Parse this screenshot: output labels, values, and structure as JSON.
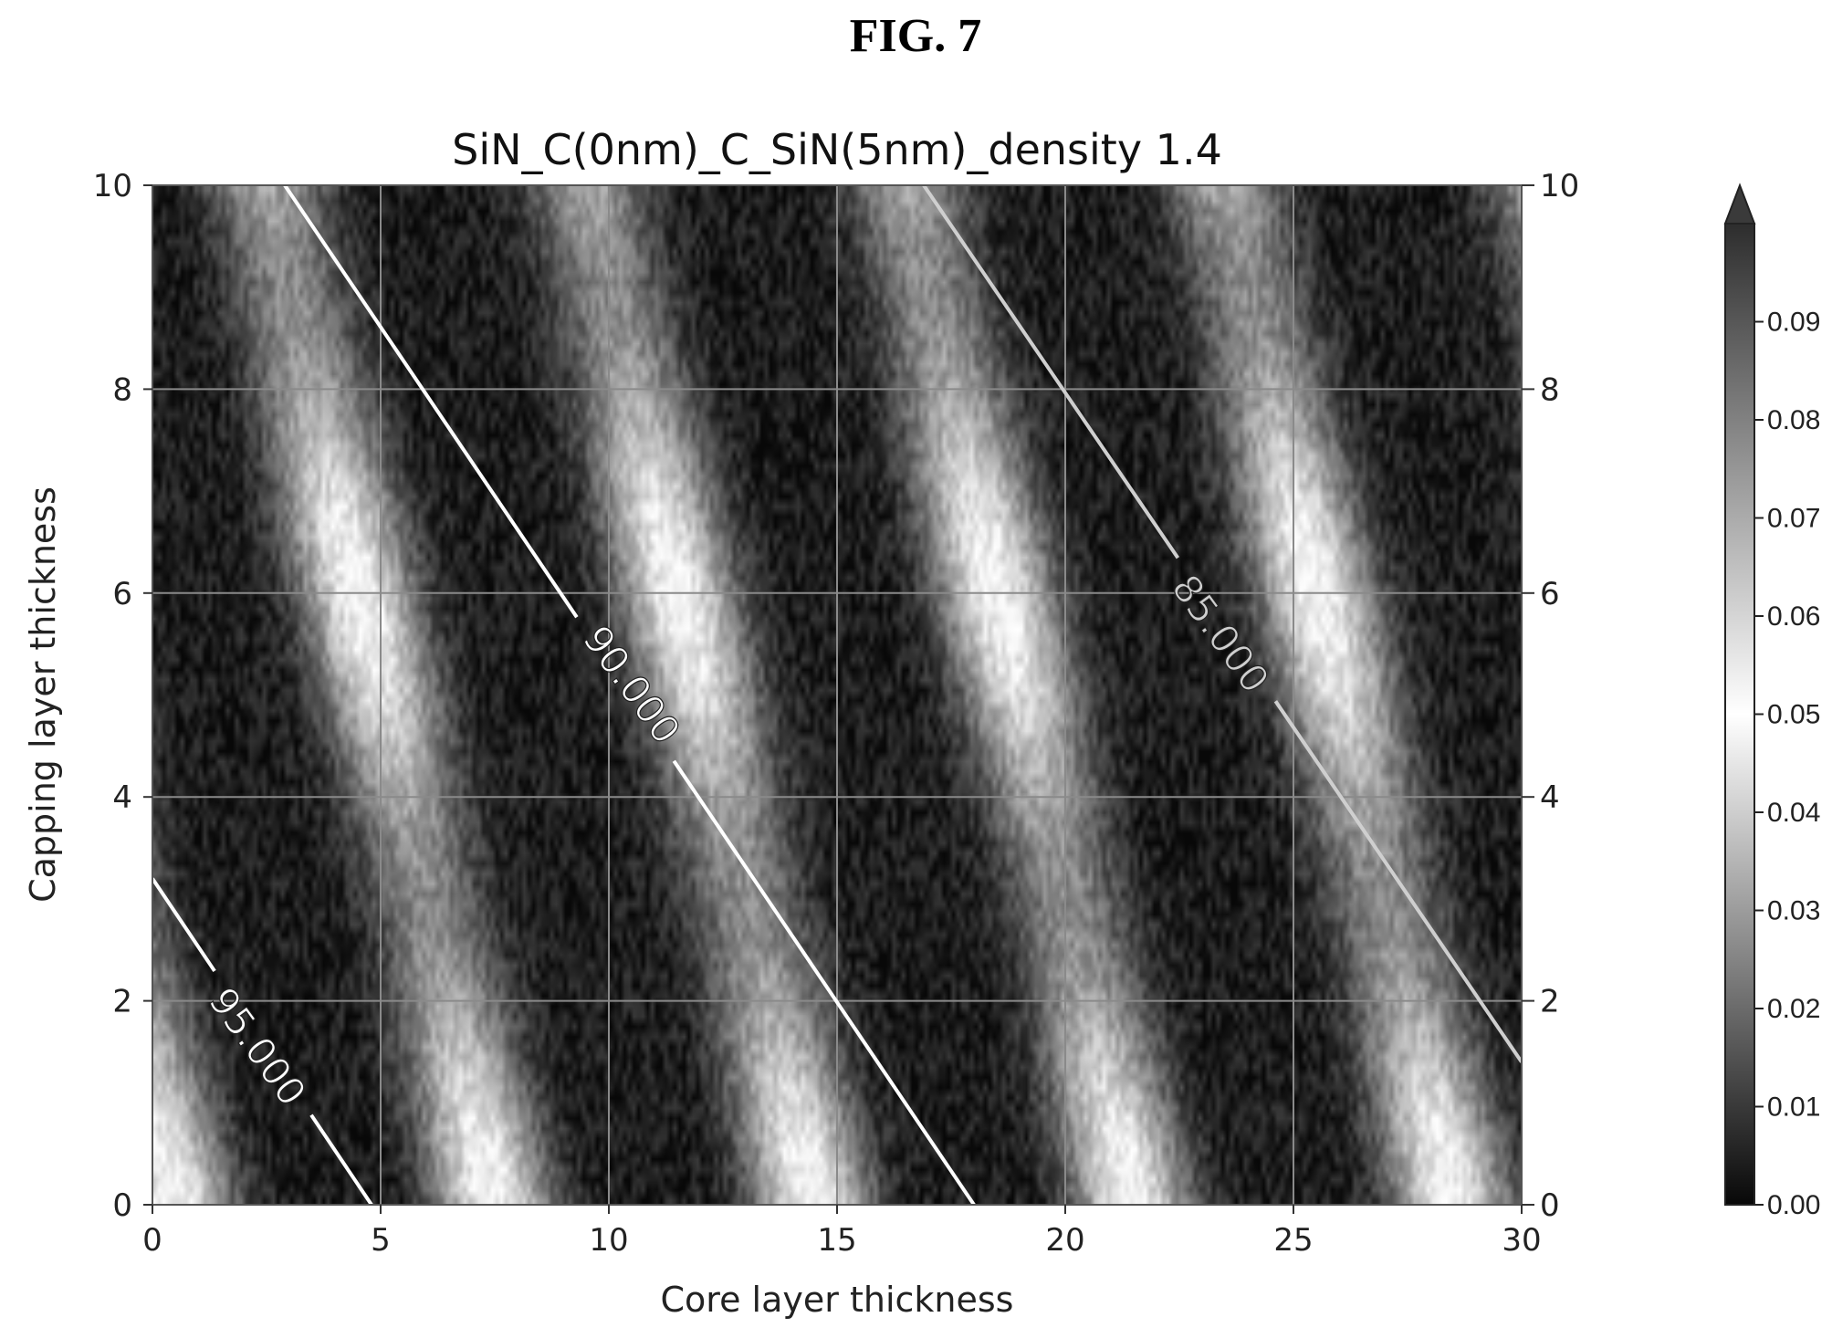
{
  "figure_label": "FIG. 7",
  "chart_data": {
    "type": "heatmap",
    "title": "SiN_C(0nm)_C_SiN(5nm)_density 1.4",
    "xlabel": "Core layer thickness",
    "ylabel": "Capping layer thickness",
    "xlim": [
      0,
      30
    ],
    "ylim": [
      0,
      10
    ],
    "x_ticks": [
      "0",
      "5",
      "10",
      "15",
      "20",
      "25",
      "30"
    ],
    "y_ticks": [
      "0",
      "2",
      "4",
      "6",
      "8",
      "10"
    ],
    "y_ticks_right": [
      "0",
      "2",
      "4",
      "6",
      "8",
      "10"
    ],
    "grid": true,
    "colorbar": {
      "min": 0.0,
      "max": 0.1,
      "extend": "max",
      "ticks": [
        "0.00",
        "0.01",
        "0.02",
        "0.03",
        "0.04",
        "0.05",
        "0.06",
        "0.07",
        "0.08",
        "0.09"
      ],
      "colormap": "dark-to-light-and-back (grayscale)"
    },
    "field_description": "periodic diagonal bands; bright maxima near (5.5, 6), (12.5, 6), (19.5, 6), (26.5, 6), (4.5, 0), (11.5, 0), (18.5, 0), (25.5, 0)",
    "contours": [
      {
        "level_label": "95.000",
        "points": [
          [
            0,
            3.2
          ],
          [
            4.8,
            0
          ]
        ],
        "label_at": [
          2.3,
          1.55
        ],
        "label_rotation": 54,
        "color": "#ffffff"
      },
      {
        "level_label": "90.000",
        "points": [
          [
            2.9,
            10
          ],
          [
            18.0,
            0
          ]
        ],
        "label_at": [
          10.5,
          5.1
        ],
        "label_rotation": 54,
        "color": "#ffffff"
      },
      {
        "level_label": "85.000",
        "points": [
          [
            16.9,
            10
          ],
          [
            30,
            1.4
          ]
        ],
        "label_at": [
          23.4,
          5.6
        ],
        "label_rotation": 54,
        "color": "#cfcfcf"
      }
    ]
  }
}
